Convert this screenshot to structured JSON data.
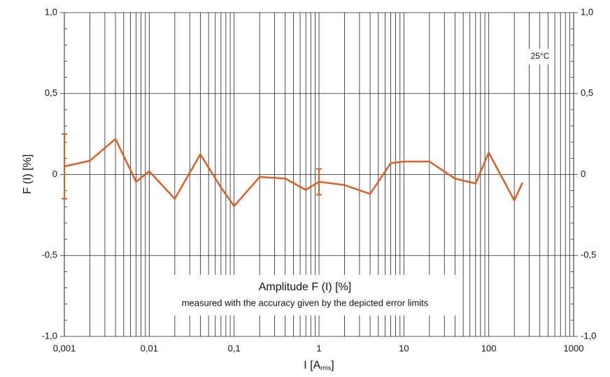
{
  "chart_data": {
    "type": "line",
    "xscale": "log",
    "grid": true,
    "ylabel": "F (I) [%]",
    "xlabel_parts": [
      "I [A",
      "rms",
      "]"
    ],
    "annotations": [
      "Amplitude F (I) [%]",
      "measured with the accuracy given by the depicted error limits",
      "25°C"
    ],
    "xlim": [
      0.001,
      1000
    ],
    "ylim": [
      -1,
      1
    ],
    "xticks": [
      {
        "value": 0.001,
        "label": "0,001"
      },
      {
        "value": 0.01,
        "label": "0,01"
      },
      {
        "value": 0.1,
        "label": "0,1"
      },
      1,
      10,
      100,
      1000
    ],
    "yticks": [
      {
        "value": -1,
        "label": "-1,0"
      },
      {
        "value": -0.5,
        "label": "-0,5"
      },
      0,
      {
        "value": 0.5,
        "label": "0,5"
      },
      {
        "value": 1,
        "label": "1,0"
      }
    ],
    "series": [
      {
        "color": "#d4602a",
        "x": [
          0.001,
          0.002,
          0.004,
          0.007,
          0.01,
          0.02,
          0.04,
          0.07,
          0.1,
          0.2,
          0.4,
          0.7,
          1,
          2,
          4,
          7,
          10,
          20,
          40,
          70,
          100,
          200,
          250
        ],
        "values": [
          0.05,
          0.085,
          0.22,
          -0.045,
          0.02,
          -0.15,
          0.125,
          -0.08,
          -0.195,
          -0.015,
          -0.025,
          -0.095,
          -0.045,
          -0.065,
          -0.12,
          0.07,
          0.08,
          0.08,
          -0.025,
          -0.055,
          0.135,
          -0.16,
          -0.05
        ],
        "errors": [
          0.2,
          null,
          null,
          null,
          null,
          null,
          null,
          null,
          null,
          null,
          null,
          null,
          0.08,
          null,
          null,
          null,
          null,
          null,
          null,
          null,
          null,
          null,
          null
        ]
      }
    ]
  }
}
